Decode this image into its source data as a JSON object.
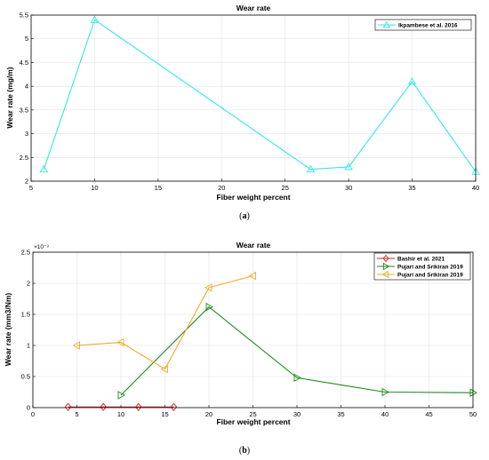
{
  "panels": [
    {
      "caption": "a"
    },
    {
      "caption": "b"
    }
  ],
  "chart_data": [
    {
      "type": "line",
      "title": "Wear rate",
      "xlabel": "Fiber weight percent",
      "ylabel": "Wear rate (mg/m)",
      "xlim": [
        5,
        40
      ],
      "ylim": [
        2,
        5.5
      ],
      "xticks": [
        5,
        10,
        15,
        20,
        25,
        30,
        35,
        40
      ],
      "yticks": [
        2,
        2.5,
        3,
        3.5,
        4,
        4.5,
        5,
        5.5
      ],
      "grid": true,
      "legend_position": "top-right",
      "series": [
        {
          "name": "Ikpambese et al. 2016",
          "color": "#33e6ee",
          "marker": "triangle-up",
          "x": [
            6,
            10,
            27,
            30,
            35,
            40
          ],
          "y": [
            2.25,
            5.4,
            2.25,
            2.3,
            4.1,
            2.2
          ]
        }
      ]
    },
    {
      "type": "line",
      "title": "Wear rate",
      "xlabel": "Fiber weight percent",
      "ylabel": "Wear rate (mm3/Nm)",
      "y_exponent": "×10⁻³",
      "xlim": [
        0,
        50
      ],
      "ylim": [
        0,
        2.5
      ],
      "xticks": [
        0,
        5,
        10,
        15,
        20,
        25,
        30,
        35,
        40,
        45,
        50
      ],
      "yticks": [
        0,
        0.5,
        1,
        1.5,
        2,
        2.5
      ],
      "grid": true,
      "legend_position": "top-right",
      "series": [
        {
          "name": "Bashir et al. 2021",
          "color": "#d62020",
          "marker": "diamond",
          "x": [
            4,
            8,
            12,
            16
          ],
          "y": [
            0.01,
            0.01,
            0.01,
            0.01
          ]
        },
        {
          "name": "Pujari and Srikiran 2019",
          "color": "#1d8a1d",
          "marker": "triangle-right",
          "x": [
            10,
            20,
            30,
            40,
            50
          ],
          "y": [
            0.2,
            1.62,
            0.48,
            0.25,
            0.24
          ]
        },
        {
          "name": "Pujari and Srikiran 2019",
          "color": "#f0aa2a",
          "marker": "triangle-left",
          "x": [
            5,
            10,
            15,
            20,
            25
          ],
          "y": [
            1.0,
            1.05,
            0.62,
            1.93,
            2.12
          ]
        }
      ]
    }
  ]
}
